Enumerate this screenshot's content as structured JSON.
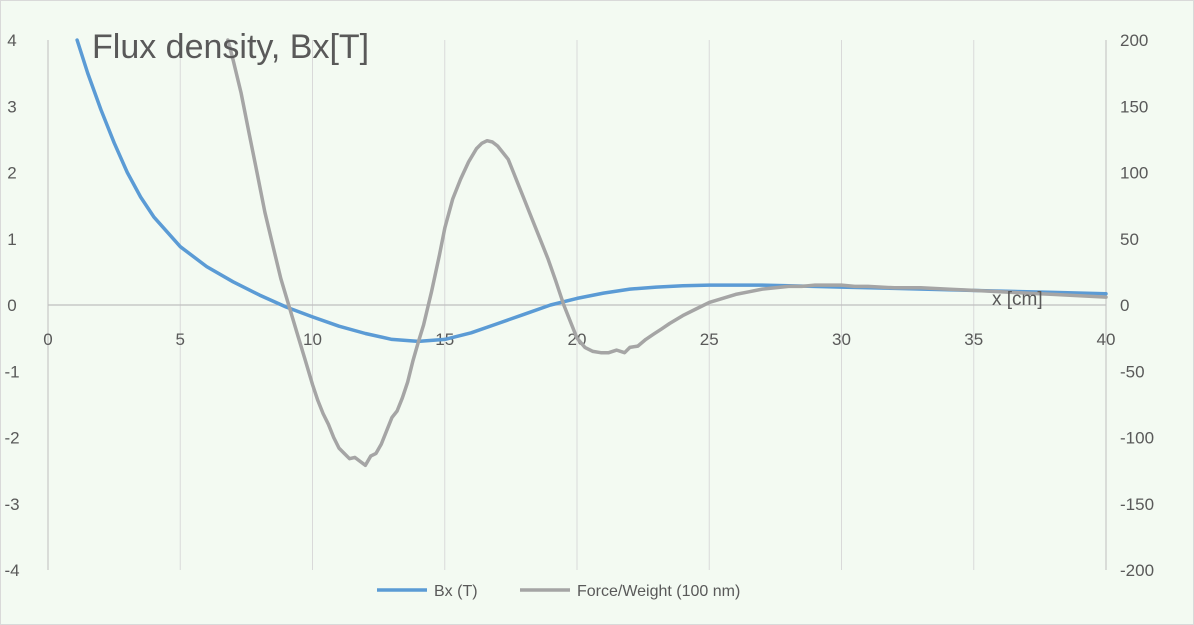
{
  "chart_data": {
    "type": "line",
    "title": "Flux density, Bx[T]",
    "xlabel": "x [cm]",
    "ylabel": "",
    "y2label": "",
    "xlim": [
      0,
      40
    ],
    "ylim": [
      -4,
      4
    ],
    "y2lim": [
      -200,
      200
    ],
    "x_ticks": [
      0,
      5,
      10,
      15,
      20,
      25,
      30,
      35,
      40
    ],
    "y_ticks": [
      -4,
      -3,
      -2,
      -1,
      0,
      1,
      2,
      3,
      4
    ],
    "y2_ticks": [
      -200,
      -150,
      -100,
      -50,
      0,
      50,
      100,
      150,
      200
    ],
    "grid": "vertical",
    "legend": "bottom",
    "colors": {
      "background": "#f3faf2",
      "grid": "#d9d9d9",
      "axis": "#bfbfbf",
      "text": "#595959",
      "series1": "#5b9bd5",
      "series2": "#a5a5a5"
    },
    "series": [
      {
        "name": "Bx (T)",
        "axis": "left",
        "x": [
          1.1,
          1.5,
          2,
          2.5,
          3,
          3.5,
          4,
          5,
          6,
          7,
          8,
          9,
          10,
          11,
          12,
          13,
          14,
          15,
          16,
          17,
          18,
          19,
          20,
          21,
          22,
          23,
          24,
          25,
          26,
          27,
          28,
          30,
          32,
          34,
          36,
          38,
          40
        ],
        "y": [
          4.0,
          3.5,
          2.95,
          2.45,
          2.0,
          1.63,
          1.33,
          0.88,
          0.58,
          0.35,
          0.15,
          -0.03,
          -0.18,
          -0.32,
          -0.43,
          -0.52,
          -0.55,
          -0.52,
          -0.42,
          -0.28,
          -0.14,
          0.0,
          0.1,
          0.18,
          0.24,
          0.27,
          0.29,
          0.3,
          0.3,
          0.3,
          0.29,
          0.27,
          0.25,
          0.23,
          0.21,
          0.19,
          0.17
        ]
      },
      {
        "name": "Force/Weight (100 nm)",
        "axis": "right",
        "x": [
          6.8,
          7.0,
          7.3,
          7.6,
          7.9,
          8.2,
          8.5,
          8.8,
          9.1,
          9.4,
          9.7,
          10.0,
          10.2,
          10.4,
          10.6,
          10.8,
          11.0,
          11.2,
          11.4,
          11.6,
          11.8,
          12.0,
          12.2,
          12.4,
          12.6,
          12.8,
          13.0,
          13.2,
          13.4,
          13.6,
          13.8,
          14.0,
          14.2,
          14.5,
          14.8,
          15.0,
          15.3,
          15.6,
          15.9,
          16.2,
          16.4,
          16.6,
          16.8,
          17.0,
          17.2,
          17.4,
          17.6,
          17.8,
          18.0,
          18.3,
          18.6,
          18.9,
          19.2,
          19.5,
          19.8,
          20.0,
          20.3,
          20.6,
          20.9,
          21.2,
          21.5,
          21.8,
          22.0,
          22.3,
          22.6,
          22.9,
          23.2,
          23.5,
          24.0,
          24.5,
          25.0,
          25.5,
          26.0,
          26.5,
          27.0,
          27.5,
          28.0,
          28.5,
          29.0,
          29.5,
          30.0,
          30.5,
          31.0,
          32.0,
          33.0,
          34.0,
          35.0,
          36.0,
          37.0,
          38.0,
          39.0,
          40.0
        ],
        "y": [
          200,
          185,
          160,
          130,
          100,
          70,
          45,
          20,
          0,
          -20,
          -40,
          -60,
          -72,
          -82,
          -90,
          -100,
          -108,
          -112,
          -116,
          -115,
          -118,
          -121,
          -114,
          -112,
          -105,
          -95,
          -85,
          -80,
          -70,
          -58,
          -42,
          -28,
          -15,
          10,
          38,
          58,
          80,
          95,
          108,
          118,
          122,
          124,
          123,
          120,
          115,
          110,
          100,
          90,
          80,
          65,
          50,
          35,
          18,
          0,
          -15,
          -25,
          -32,
          -35,
          -36,
          -36,
          -34,
          -36,
          -32,
          -31,
          -26,
          -22,
          -18,
          -14,
          -8,
          -3,
          2,
          5,
          8,
          10,
          12,
          13,
          14,
          14,
          15,
          15,
          15,
          14,
          14,
          13,
          13,
          12,
          11,
          10,
          9,
          8,
          7,
          6
        ]
      }
    ]
  }
}
